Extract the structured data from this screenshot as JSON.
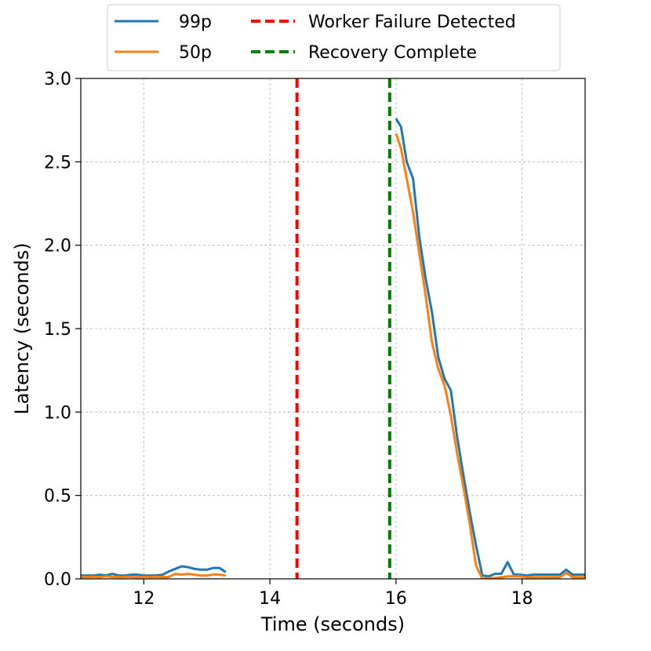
{
  "chart_data": {
    "type": "line",
    "xlabel": "Time (seconds)",
    "ylabel": "Latency (seconds)",
    "xlim": [
      11,
      19
    ],
    "ylim": [
      0,
      3
    ],
    "xticks": [
      12,
      14,
      16,
      18
    ],
    "yticks": [
      0,
      0.5,
      1.0,
      1.5,
      2.0,
      2.5,
      3.0
    ],
    "xtick_labels": [
      "12",
      "14",
      "16",
      "18"
    ],
    "ytick_labels": [
      "0.0",
      "0.5",
      "1.0",
      "1.5",
      "2.0",
      "2.5",
      "3.0"
    ],
    "grid": true,
    "legend_position": "top-center-outside",
    "series": [
      {
        "name": "99p",
        "color": "#1f77b4",
        "segments": [
          [
            [
              11.0,
              0.02
            ],
            [
              11.1,
              0.02
            ],
            [
              11.2,
              0.02
            ],
            [
              11.3,
              0.025
            ],
            [
              11.4,
              0.02
            ],
            [
              11.5,
              0.03
            ],
            [
              11.6,
              0.02
            ],
            [
              11.7,
              0.02
            ],
            [
              11.8,
              0.025
            ],
            [
              11.9,
              0.025
            ],
            [
              12.0,
              0.02
            ],
            [
              12.1,
              0.02
            ],
            [
              12.2,
              0.02
            ],
            [
              12.3,
              0.025
            ],
            [
              12.4,
              0.045
            ],
            [
              12.5,
              0.06
            ],
            [
              12.6,
              0.075
            ],
            [
              12.7,
              0.07
            ],
            [
              12.8,
              0.06
            ],
            [
              12.9,
              0.055
            ],
            [
              13.0,
              0.055
            ],
            [
              13.1,
              0.065
            ],
            [
              13.2,
              0.065
            ],
            [
              13.3,
              0.04
            ]
          ],
          [
            [
              16.0,
              2.76
            ],
            [
              16.08,
              2.71
            ],
            [
              16.17,
              2.5
            ],
            [
              16.27,
              2.4
            ],
            [
              16.37,
              2.05
            ],
            [
              16.47,
              1.8
            ],
            [
              16.57,
              1.6
            ],
            [
              16.67,
              1.33
            ],
            [
              16.77,
              1.2
            ],
            [
              16.87,
              1.13
            ],
            [
              16.97,
              0.85
            ],
            [
              17.07,
              0.62
            ],
            [
              17.17,
              0.4
            ],
            [
              17.27,
              0.2
            ],
            [
              17.37,
              0.02
            ],
            [
              17.47,
              0.015
            ],
            [
              17.57,
              0.03
            ],
            [
              17.67,
              0.03
            ],
            [
              17.77,
              0.1
            ],
            [
              17.87,
              0.025
            ],
            [
              17.97,
              0.025
            ],
            [
              18.07,
              0.02
            ],
            [
              18.17,
              0.025
            ],
            [
              18.27,
              0.025
            ],
            [
              18.37,
              0.025
            ],
            [
              18.47,
              0.025
            ],
            [
              18.6,
              0.025
            ],
            [
              18.7,
              0.055
            ],
            [
              18.8,
              0.025
            ],
            [
              18.9,
              0.025
            ],
            [
              19.0,
              0.025
            ]
          ]
        ]
      },
      {
        "name": "50p",
        "color": "#ff7f0e",
        "segments": [
          [
            [
              11.0,
              0.01
            ],
            [
              11.1,
              0.01
            ],
            [
              11.2,
              0.012
            ],
            [
              11.3,
              0.01
            ],
            [
              11.4,
              0.015
            ],
            [
              11.5,
              0.012
            ],
            [
              11.6,
              0.01
            ],
            [
              11.7,
              0.012
            ],
            [
              11.8,
              0.012
            ],
            [
              11.9,
              0.01
            ],
            [
              12.0,
              0.012
            ],
            [
              12.1,
              0.01
            ],
            [
              12.2,
              0.012
            ],
            [
              12.3,
              0.01
            ],
            [
              12.4,
              0.012
            ],
            [
              12.5,
              0.03
            ],
            [
              12.6,
              0.025
            ],
            [
              12.7,
              0.03
            ],
            [
              12.8,
              0.025
            ],
            [
              12.9,
              0.02
            ],
            [
              13.0,
              0.02
            ],
            [
              13.1,
              0.025
            ],
            [
              13.2,
              0.025
            ],
            [
              13.3,
              0.02
            ]
          ],
          [
            [
              16.0,
              2.67
            ],
            [
              16.08,
              2.58
            ],
            [
              16.17,
              2.4
            ],
            [
              16.27,
              2.2
            ],
            [
              16.37,
              1.95
            ],
            [
              16.47,
              1.7
            ],
            [
              16.57,
              1.42
            ],
            [
              16.67,
              1.26
            ],
            [
              16.77,
              1.16
            ],
            [
              16.87,
              0.98
            ],
            [
              16.97,
              0.75
            ],
            [
              17.07,
              0.55
            ],
            [
              17.17,
              0.33
            ],
            [
              17.27,
              0.08
            ],
            [
              17.37,
              0.0
            ],
            [
              17.47,
              0.005
            ],
            [
              17.57,
              0.005
            ],
            [
              17.67,
              0.01
            ],
            [
              17.77,
              0.015
            ],
            [
              17.87,
              0.015
            ],
            [
              17.97,
              0.015
            ],
            [
              18.07,
              0.01
            ],
            [
              18.17,
              0.01
            ],
            [
              18.27,
              0.01
            ],
            [
              18.37,
              0.01
            ],
            [
              18.47,
              0.01
            ],
            [
              18.6,
              0.01
            ],
            [
              18.7,
              0.035
            ],
            [
              18.8,
              0.01
            ],
            [
              18.9,
              0.01
            ],
            [
              19.0,
              0.01
            ]
          ]
        ]
      }
    ],
    "vlines": [
      {
        "name": "Worker Failure Detected",
        "x": 14.43,
        "color": "#ff0000",
        "style": "dashed"
      },
      {
        "name": "Recovery Complete",
        "x": 15.9,
        "color": "#008000",
        "style": "dashed"
      }
    ]
  }
}
